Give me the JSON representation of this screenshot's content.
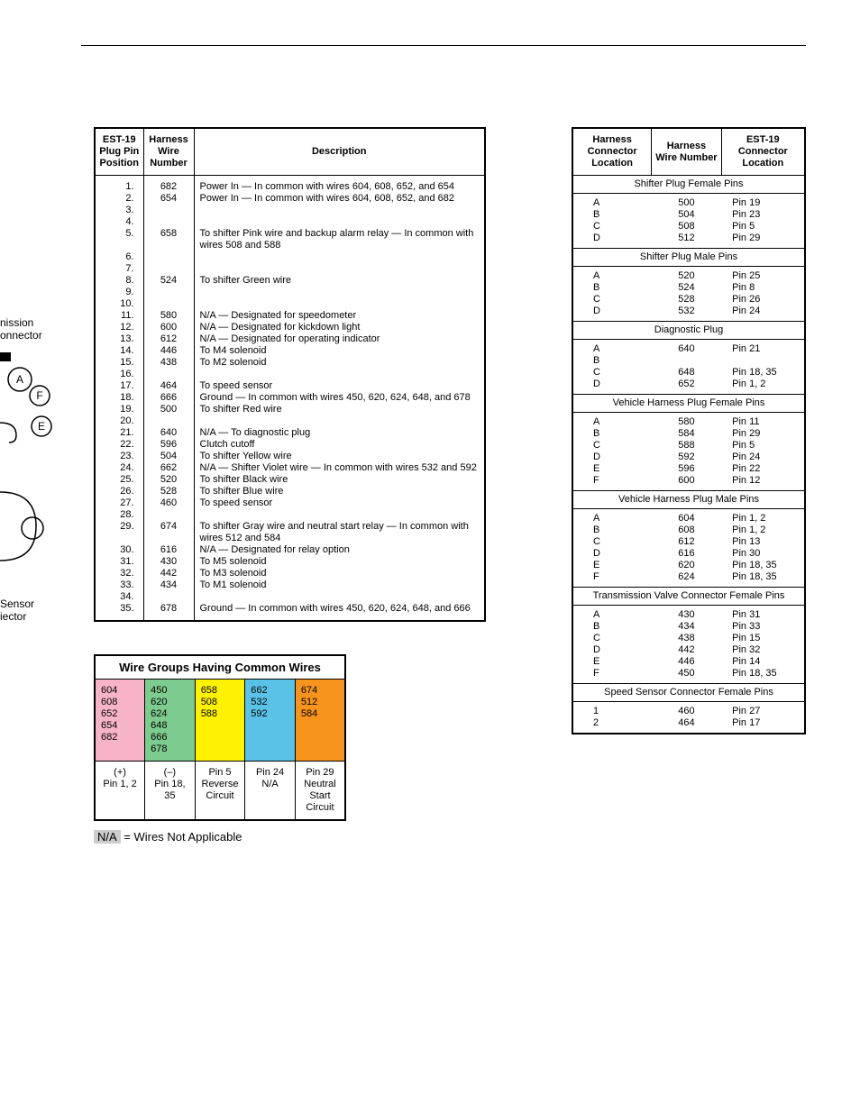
{
  "side": {
    "label1_line1": "nission",
    "label1_line2": "onnector",
    "label2_line1": "Sensor",
    "label2_line2": "iector"
  },
  "mainTable": {
    "headers": {
      "c1": "EST-19 Plug Pin Position",
      "c2": "Harness Wire Number",
      "c3": "Description"
    },
    "rows": [
      {
        "p": "1.",
        "w": "682",
        "d": "Power In — In common with wires 604, 608, 652, and 654"
      },
      {
        "p": "2.",
        "w": "654",
        "d": "Power In — In common with wires 604, 608, 652, and 682"
      },
      {
        "p": "3.",
        "w": "",
        "d": ""
      },
      {
        "p": "4.",
        "w": "",
        "d": ""
      },
      {
        "p": "5.",
        "w": "658",
        "d": "To shifter Pink wire and backup alarm relay — In common with wires 508 and 588"
      },
      {
        "p": "6.",
        "w": "",
        "d": ""
      },
      {
        "p": "7.",
        "w": "",
        "d": ""
      },
      {
        "p": "8.",
        "w": "524",
        "d": "To shifter Green wire"
      },
      {
        "p": "9.",
        "w": "",
        "d": ""
      },
      {
        "p": "10.",
        "w": "",
        "d": ""
      },
      {
        "p": "11.",
        "w": "580",
        "d": "N/A — Designated for speedometer"
      },
      {
        "p": "12.",
        "w": "600",
        "d": "N/A — Designated for kickdown light"
      },
      {
        "p": "13.",
        "w": "612",
        "d": "N/A — Designated for operating indicator"
      },
      {
        "p": "14.",
        "w": "446",
        "d": "To M4 solenoid"
      },
      {
        "p": "15.",
        "w": "438",
        "d": "To M2 solenoid"
      },
      {
        "p": "16.",
        "w": "",
        "d": ""
      },
      {
        "p": "17.",
        "w": "464",
        "d": "To speed sensor"
      },
      {
        "p": "18.",
        "w": "666",
        "d": "Ground — In common with wires 450, 620, 624, 648, and 678"
      },
      {
        "p": "19.",
        "w": "500",
        "d": "To shifter Red wire"
      },
      {
        "p": "20.",
        "w": "",
        "d": ""
      },
      {
        "p": "21.",
        "w": "640",
        "d": "N/A — To diagnostic plug"
      },
      {
        "p": "22.",
        "w": "596",
        "d": "Clutch cutoff"
      },
      {
        "p": "23.",
        "w": "504",
        "d": "To shifter Yellow wire"
      },
      {
        "p": "24.",
        "w": "662",
        "d": "N/A — Shifter Violet wire — In common with wires 532 and 592"
      },
      {
        "p": "25.",
        "w": "520",
        "d": "To shifter Black wire"
      },
      {
        "p": "26.",
        "w": "528",
        "d": "To shifter Blue wire"
      },
      {
        "p": "27.",
        "w": "460",
        "d": "To speed sensor"
      },
      {
        "p": "28.",
        "w": "",
        "d": ""
      },
      {
        "p": "29.",
        "w": "674",
        "d": "To shifter Gray wire and neutral start relay — In common with wires 512 and 584"
      },
      {
        "p": "30.",
        "w": "616",
        "d": "N/A — Designated for relay option"
      },
      {
        "p": "31.",
        "w": "430",
        "d": "To M5 solenoid"
      },
      {
        "p": "32.",
        "w": "442",
        "d": "To M3 solenoid"
      },
      {
        "p": "33.",
        "w": "434",
        "d": "To M1 solenoid"
      },
      {
        "p": "34.",
        "w": "",
        "d": ""
      },
      {
        "p": "35.",
        "w": "678",
        "d": "Ground — In common with wires 450, 620, 624, 648, and 666"
      }
    ]
  },
  "groupsTable": {
    "title": "Wire Groups Having Common Wires",
    "colors": {
      "pink": "#f7b4c9",
      "green": "#7ecb8f",
      "yellow": "#fff200",
      "blue": "#5bc2e7",
      "orange": "#f7941d"
    },
    "body": [
      {
        "bg": "pink",
        "lines": [
          "604",
          "608",
          "652",
          "654",
          "682"
        ]
      },
      {
        "bg": "green",
        "lines": [
          "450",
          "620",
          "624",
          "648",
          "666",
          "678"
        ]
      },
      {
        "bg": "yellow",
        "lines": [
          "658",
          "508",
          "588"
        ]
      },
      {
        "bg": "blue",
        "lines": [
          "662",
          "532",
          "592"
        ]
      },
      {
        "bg": "orange",
        "lines": [
          "674",
          "512",
          "584"
        ]
      }
    ],
    "labels": [
      {
        "l1": "(+)",
        "l2": "Pin 1, 2"
      },
      {
        "l1": "(–)",
        "l2": "Pin 18, 35"
      },
      {
        "l1": "Pin 5",
        "l2": "Reverse Circuit"
      },
      {
        "l1": "Pin 24",
        "l2": "N/A"
      },
      {
        "l1": "Pin 29",
        "l2": "Neutral Start Circuit"
      }
    ]
  },
  "naNote": {
    "chip": "N/A",
    "text": "= Wires Not Applicable"
  },
  "harnessTable": {
    "headers": {
      "c1": "Harness Connector Location",
      "c2": "Harness Wire Number",
      "c3": "EST-19 Connector Location"
    },
    "sections": [
      {
        "title": "Shifter Plug Female Pins",
        "rows": [
          {
            "a": "A",
            "b": "500",
            "c": "Pin 19"
          },
          {
            "a": "B",
            "b": "504",
            "c": "Pin 23"
          },
          {
            "a": "C",
            "b": "508",
            "c": "Pin 5"
          },
          {
            "a": "D",
            "b": "512",
            "c": "Pin 29"
          }
        ]
      },
      {
        "title": "Shifter Plug Male Pins",
        "rows": [
          {
            "a": "A",
            "b": "520",
            "c": "Pin 25"
          },
          {
            "a": "B",
            "b": "524",
            "c": "Pin 8"
          },
          {
            "a": "C",
            "b": "528",
            "c": "Pin 26"
          },
          {
            "a": "D",
            "b": "532",
            "c": "Pin 24"
          }
        ]
      },
      {
        "title": "Diagnostic Plug",
        "rows": [
          {
            "a": "A",
            "b": "640",
            "c": "Pin 21"
          },
          {
            "a": "B",
            "b": "",
            "c": ""
          },
          {
            "a": "C",
            "b": "648",
            "c": "Pin 18, 35"
          },
          {
            "a": "D",
            "b": "652",
            "c": "Pin 1, 2"
          }
        ]
      },
      {
        "title": "Vehicle Harness Plug Female Pins",
        "rows": [
          {
            "a": "A",
            "b": "580",
            "c": "Pin 11"
          },
          {
            "a": "B",
            "b": "584",
            "c": "Pin 29"
          },
          {
            "a": "C",
            "b": "588",
            "c": "Pin 5"
          },
          {
            "a": "D",
            "b": "592",
            "c": "Pin 24"
          },
          {
            "a": "E",
            "b": "596",
            "c": "Pin 22"
          },
          {
            "a": "F",
            "b": "600",
            "c": "Pin 12"
          }
        ]
      },
      {
        "title": "Vehicle Harness Plug Male Pins",
        "rows": [
          {
            "a": "A",
            "b": "604",
            "c": "Pin 1, 2"
          },
          {
            "a": "B",
            "b": "608",
            "c": "Pin 1, 2"
          },
          {
            "a": "C",
            "b": "612",
            "c": "Pin 13"
          },
          {
            "a": "D",
            "b": "616",
            "c": "Pin 30"
          },
          {
            "a": "E",
            "b": "620",
            "c": "Pin 18, 35"
          },
          {
            "a": "F",
            "b": "624",
            "c": "Pin 18, 35"
          }
        ]
      },
      {
        "title": "Transmission Valve Connector Female Pins",
        "rows": [
          {
            "a": "A",
            "b": "430",
            "c": "Pin 31"
          },
          {
            "a": "B",
            "b": "434",
            "c": "Pin 33"
          },
          {
            "a": "C",
            "b": "438",
            "c": "Pin 15"
          },
          {
            "a": "D",
            "b": "442",
            "c": "Pin 32"
          },
          {
            "a": "E",
            "b": "446",
            "c": "Pin 14"
          },
          {
            "a": "F",
            "b": "450",
            "c": "Pin 18, 35"
          }
        ]
      },
      {
        "title": "Speed Sensor Connector Female Pins",
        "rows": [
          {
            "a": "1",
            "b": "460",
            "c": "Pin 27"
          },
          {
            "a": "2",
            "b": "464",
            "c": "Pin 17"
          }
        ]
      }
    ]
  }
}
